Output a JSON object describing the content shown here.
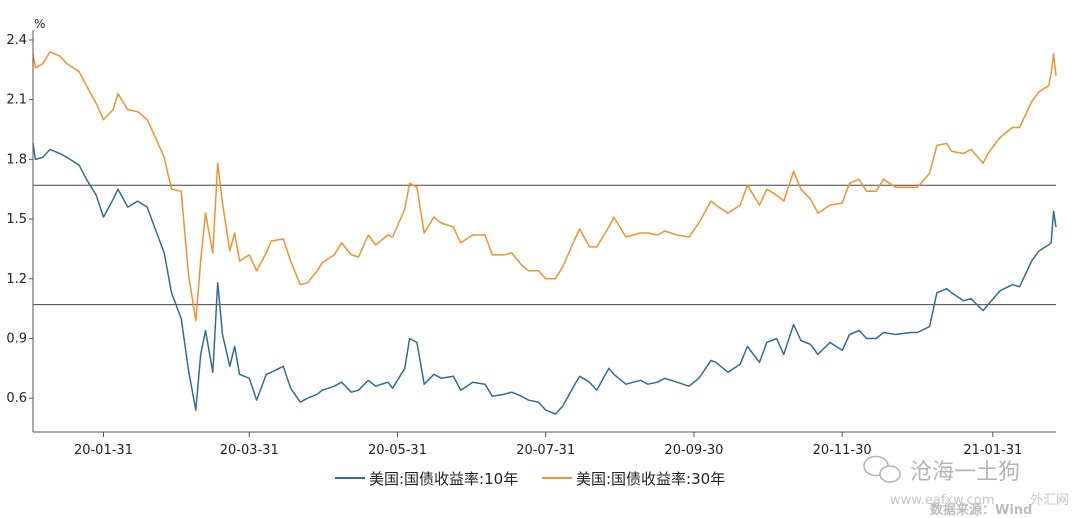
{
  "chart_data": {
    "type": "line",
    "ylabel": "%",
    "ylim": [
      0.43,
      2.45
    ],
    "yticks": [
      0.6,
      0.9,
      1.2,
      1.5,
      1.8,
      2.1,
      2.4
    ],
    "ytick_labels": [
      "0.6",
      "0.9",
      "1.2",
      "1.5",
      "1.8",
      "2.1",
      "2.4"
    ],
    "xlim": [
      "2020-01-02",
      "2021-02-26"
    ],
    "xticks": [
      {
        "date": "2020-01-31",
        "label": "20-01-31"
      },
      {
        "date": "2020-03-31",
        "label": "20-03-31"
      },
      {
        "date": "2020-05-31",
        "label": "20-05-31"
      },
      {
        "date": "2020-07-31",
        "label": "20-07-31"
      },
      {
        "date": "2020-09-30",
        "label": "20-09-30"
      },
      {
        "date": "2020-11-30",
        "label": "20-11-30"
      },
      {
        "date": "2021-01-31",
        "label": "21-01-31"
      }
    ],
    "hlines": [
      1.67,
      1.07
    ],
    "series": [
      {
        "name": "美国:国债收益率:10年",
        "color": "#2e6e96",
        "points": [
          [
            "2020-01-02",
            1.88
          ],
          [
            "2020-01-03",
            1.8
          ],
          [
            "2020-01-06",
            1.81
          ],
          [
            "2020-01-09",
            1.85
          ],
          [
            "2020-01-13",
            1.83
          ],
          [
            "2020-01-16",
            1.81
          ],
          [
            "2020-01-21",
            1.77
          ],
          [
            "2020-01-24",
            1.7
          ],
          [
            "2020-01-28",
            1.62
          ],
          [
            "2020-01-31",
            1.51
          ],
          [
            "2020-02-04",
            1.6
          ],
          [
            "2020-02-06",
            1.65
          ],
          [
            "2020-02-10",
            1.56
          ],
          [
            "2020-02-14",
            1.59
          ],
          [
            "2020-02-18",
            1.56
          ],
          [
            "2020-02-21",
            1.46
          ],
          [
            "2020-02-25",
            1.33
          ],
          [
            "2020-02-28",
            1.13
          ],
          [
            "2020-03-03",
            1.0
          ],
          [
            "2020-03-06",
            0.74
          ],
          [
            "2020-03-09",
            0.54
          ],
          [
            "2020-03-11",
            0.82
          ],
          [
            "2020-03-13",
            0.94
          ],
          [
            "2020-03-16",
            0.73
          ],
          [
            "2020-03-18",
            1.18
          ],
          [
            "2020-03-20",
            0.92
          ],
          [
            "2020-03-23",
            0.76
          ],
          [
            "2020-03-25",
            0.86
          ],
          [
            "2020-03-27",
            0.72
          ],
          [
            "2020-03-31",
            0.7
          ],
          [
            "2020-04-03",
            0.59
          ],
          [
            "2020-04-07",
            0.72
          ],
          [
            "2020-04-09",
            0.73
          ],
          [
            "2020-04-14",
            0.76
          ],
          [
            "2020-04-17",
            0.65
          ],
          [
            "2020-04-21",
            0.58
          ],
          [
            "2020-04-24",
            0.6
          ],
          [
            "2020-04-28",
            0.62
          ],
          [
            "2020-04-30",
            0.64
          ],
          [
            "2020-05-05",
            0.66
          ],
          [
            "2020-05-08",
            0.68
          ],
          [
            "2020-05-12",
            0.63
          ],
          [
            "2020-05-15",
            0.64
          ],
          [
            "2020-05-19",
            0.69
          ],
          [
            "2020-05-22",
            0.66
          ],
          [
            "2020-05-27",
            0.68
          ],
          [
            "2020-05-29",
            0.65
          ],
          [
            "2020-06-03",
            0.75
          ],
          [
            "2020-06-05",
            0.9
          ],
          [
            "2020-06-08",
            0.88
          ],
          [
            "2020-06-11",
            0.67
          ],
          [
            "2020-06-15",
            0.72
          ],
          [
            "2020-06-18",
            0.7
          ],
          [
            "2020-06-23",
            0.71
          ],
          [
            "2020-06-26",
            0.64
          ],
          [
            "2020-07-01",
            0.68
          ],
          [
            "2020-07-06",
            0.67
          ],
          [
            "2020-07-09",
            0.61
          ],
          [
            "2020-07-14",
            0.62
          ],
          [
            "2020-07-17",
            0.63
          ],
          [
            "2020-07-21",
            0.61
          ],
          [
            "2020-07-24",
            0.59
          ],
          [
            "2020-07-28",
            0.58
          ],
          [
            "2020-07-31",
            0.54
          ],
          [
            "2020-08-04",
            0.52
          ],
          [
            "2020-08-07",
            0.56
          ],
          [
            "2020-08-12",
            0.67
          ],
          [
            "2020-08-14",
            0.71
          ],
          [
            "2020-08-18",
            0.68
          ],
          [
            "2020-08-21",
            0.64
          ],
          [
            "2020-08-26",
            0.75
          ],
          [
            "2020-08-28",
            0.72
          ],
          [
            "2020-09-02",
            0.67
          ],
          [
            "2020-09-08",
            0.69
          ],
          [
            "2020-09-11",
            0.67
          ],
          [
            "2020-09-15",
            0.68
          ],
          [
            "2020-09-18",
            0.7
          ],
          [
            "2020-09-23",
            0.68
          ],
          [
            "2020-09-28",
            0.66
          ],
          [
            "2020-10-02",
            0.7
          ],
          [
            "2020-10-07",
            0.79
          ],
          [
            "2020-10-09",
            0.78
          ],
          [
            "2020-10-14",
            0.73
          ],
          [
            "2020-10-19",
            0.77
          ],
          [
            "2020-10-22",
            0.86
          ],
          [
            "2020-10-27",
            0.78
          ],
          [
            "2020-10-30",
            0.88
          ],
          [
            "2020-11-03",
            0.9
          ],
          [
            "2020-11-06",
            0.82
          ],
          [
            "2020-11-10",
            0.97
          ],
          [
            "2020-11-13",
            0.89
          ],
          [
            "2020-11-17",
            0.87
          ],
          [
            "2020-11-20",
            0.82
          ],
          [
            "2020-11-25",
            0.88
          ],
          [
            "2020-11-30",
            0.84
          ],
          [
            "2020-12-03",
            0.92
          ],
          [
            "2020-12-07",
            0.94
          ],
          [
            "2020-12-10",
            0.9
          ],
          [
            "2020-12-14",
            0.9
          ],
          [
            "2020-12-17",
            0.93
          ],
          [
            "2020-12-22",
            0.92
          ],
          [
            "2020-12-28",
            0.93
          ],
          [
            "2020-12-31",
            0.93
          ],
          [
            "2021-01-05",
            0.96
          ],
          [
            "2021-01-08",
            1.13
          ],
          [
            "2021-01-12",
            1.15
          ],
          [
            "2021-01-14",
            1.13
          ],
          [
            "2021-01-19",
            1.09
          ],
          [
            "2021-01-22",
            1.1
          ],
          [
            "2021-01-27",
            1.04
          ],
          [
            "2021-01-29",
            1.07
          ],
          [
            "2021-02-03",
            1.14
          ],
          [
            "2021-02-08",
            1.17
          ],
          [
            "2021-02-11",
            1.16
          ],
          [
            "2021-02-16",
            1.29
          ],
          [
            "2021-02-19",
            1.34
          ],
          [
            "2021-02-23",
            1.37
          ],
          [
            "2021-02-24",
            1.38
          ],
          [
            "2021-02-25",
            1.54
          ],
          [
            "2021-02-26",
            1.46
          ]
        ]
      },
      {
        "name": "美国:国债收益率:30年",
        "color": "#f0922e",
        "points": [
          [
            "2020-01-02",
            2.33
          ],
          [
            "2020-01-03",
            2.26
          ],
          [
            "2020-01-06",
            2.28
          ],
          [
            "2020-01-09",
            2.34
          ],
          [
            "2020-01-13",
            2.32
          ],
          [
            "2020-01-16",
            2.28
          ],
          [
            "2020-01-21",
            2.24
          ],
          [
            "2020-01-24",
            2.17
          ],
          [
            "2020-01-28",
            2.08
          ],
          [
            "2020-01-31",
            2.0
          ],
          [
            "2020-02-04",
            2.05
          ],
          [
            "2020-02-06",
            2.13
          ],
          [
            "2020-02-10",
            2.05
          ],
          [
            "2020-02-14",
            2.04
          ],
          [
            "2020-02-18",
            2.0
          ],
          [
            "2020-02-21",
            1.92
          ],
          [
            "2020-02-25",
            1.81
          ],
          [
            "2020-02-28",
            1.65
          ],
          [
            "2020-03-03",
            1.64
          ],
          [
            "2020-03-06",
            1.22
          ],
          [
            "2020-03-09",
            0.99
          ],
          [
            "2020-03-11",
            1.29
          ],
          [
            "2020-03-13",
            1.53
          ],
          [
            "2020-03-16",
            1.33
          ],
          [
            "2020-03-18",
            1.78
          ],
          [
            "2020-03-20",
            1.58
          ],
          [
            "2020-03-23",
            1.34
          ],
          [
            "2020-03-25",
            1.43
          ],
          [
            "2020-03-27",
            1.29
          ],
          [
            "2020-03-31",
            1.32
          ],
          [
            "2020-04-03",
            1.24
          ],
          [
            "2020-04-07",
            1.33
          ],
          [
            "2020-04-09",
            1.39
          ],
          [
            "2020-04-14",
            1.4
          ],
          [
            "2020-04-17",
            1.29
          ],
          [
            "2020-04-21",
            1.17
          ],
          [
            "2020-04-24",
            1.18
          ],
          [
            "2020-04-28",
            1.24
          ],
          [
            "2020-04-30",
            1.28
          ],
          [
            "2020-05-05",
            1.32
          ],
          [
            "2020-05-08",
            1.38
          ],
          [
            "2020-05-12",
            1.32
          ],
          [
            "2020-05-15",
            1.31
          ],
          [
            "2020-05-19",
            1.42
          ],
          [
            "2020-05-22",
            1.37
          ],
          [
            "2020-05-27",
            1.42
          ],
          [
            "2020-05-29",
            1.41
          ],
          [
            "2020-06-03",
            1.55
          ],
          [
            "2020-06-05",
            1.68
          ],
          [
            "2020-06-08",
            1.66
          ],
          [
            "2020-06-11",
            1.43
          ],
          [
            "2020-06-15",
            1.51
          ],
          [
            "2020-06-18",
            1.48
          ],
          [
            "2020-06-23",
            1.46
          ],
          [
            "2020-06-26",
            1.38
          ],
          [
            "2020-07-01",
            1.42
          ],
          [
            "2020-07-06",
            1.42
          ],
          [
            "2020-07-09",
            1.32
          ],
          [
            "2020-07-14",
            1.32
          ],
          [
            "2020-07-17",
            1.33
          ],
          [
            "2020-07-21",
            1.27
          ],
          [
            "2020-07-24",
            1.24
          ],
          [
            "2020-07-28",
            1.24
          ],
          [
            "2020-07-31",
            1.2
          ],
          [
            "2020-08-04",
            1.2
          ],
          [
            "2020-08-07",
            1.26
          ],
          [
            "2020-08-12",
            1.4
          ],
          [
            "2020-08-14",
            1.45
          ],
          [
            "2020-08-18",
            1.36
          ],
          [
            "2020-08-21",
            1.36
          ],
          [
            "2020-08-26",
            1.46
          ],
          [
            "2020-08-28",
            1.51
          ],
          [
            "2020-09-02",
            1.41
          ],
          [
            "2020-09-08",
            1.43
          ],
          [
            "2020-09-11",
            1.43
          ],
          [
            "2020-09-15",
            1.42
          ],
          [
            "2020-09-18",
            1.44
          ],
          [
            "2020-09-23",
            1.42
          ],
          [
            "2020-09-28",
            1.41
          ],
          [
            "2020-10-02",
            1.48
          ],
          [
            "2020-10-07",
            1.59
          ],
          [
            "2020-10-09",
            1.57
          ],
          [
            "2020-10-14",
            1.53
          ],
          [
            "2020-10-19",
            1.57
          ],
          [
            "2020-10-22",
            1.67
          ],
          [
            "2020-10-27",
            1.57
          ],
          [
            "2020-10-30",
            1.65
          ],
          [
            "2020-11-03",
            1.62
          ],
          [
            "2020-11-06",
            1.59
          ],
          [
            "2020-11-10",
            1.74
          ],
          [
            "2020-11-13",
            1.65
          ],
          [
            "2020-11-17",
            1.6
          ],
          [
            "2020-11-20",
            1.53
          ],
          [
            "2020-11-25",
            1.57
          ],
          [
            "2020-11-30",
            1.58
          ],
          [
            "2020-12-03",
            1.68
          ],
          [
            "2020-12-07",
            1.7
          ],
          [
            "2020-12-10",
            1.64
          ],
          [
            "2020-12-14",
            1.64
          ],
          [
            "2020-12-17",
            1.7
          ],
          [
            "2020-12-22",
            1.66
          ],
          [
            "2020-12-28",
            1.66
          ],
          [
            "2020-12-31",
            1.66
          ],
          [
            "2021-01-05",
            1.73
          ],
          [
            "2021-01-08",
            1.87
          ],
          [
            "2021-01-12",
            1.88
          ],
          [
            "2021-01-14",
            1.84
          ],
          [
            "2021-01-19",
            1.83
          ],
          [
            "2021-01-22",
            1.85
          ],
          [
            "2021-01-27",
            1.78
          ],
          [
            "2021-01-29",
            1.83
          ],
          [
            "2021-02-03",
            1.91
          ],
          [
            "2021-02-08",
            1.96
          ],
          [
            "2021-02-11",
            1.96
          ],
          [
            "2021-02-16",
            2.09
          ],
          [
            "2021-02-19",
            2.14
          ],
          [
            "2021-02-23",
            2.17
          ],
          [
            "2021-02-24",
            2.23
          ],
          [
            "2021-02-25",
            2.33
          ],
          [
            "2021-02-26",
            2.22
          ]
        ]
      }
    ]
  },
  "watermark": {
    "wechat": "沧海一土狗",
    "url": "www.eafxw.com",
    "source": "数据来源：Wind",
    "site": "外汇网"
  }
}
